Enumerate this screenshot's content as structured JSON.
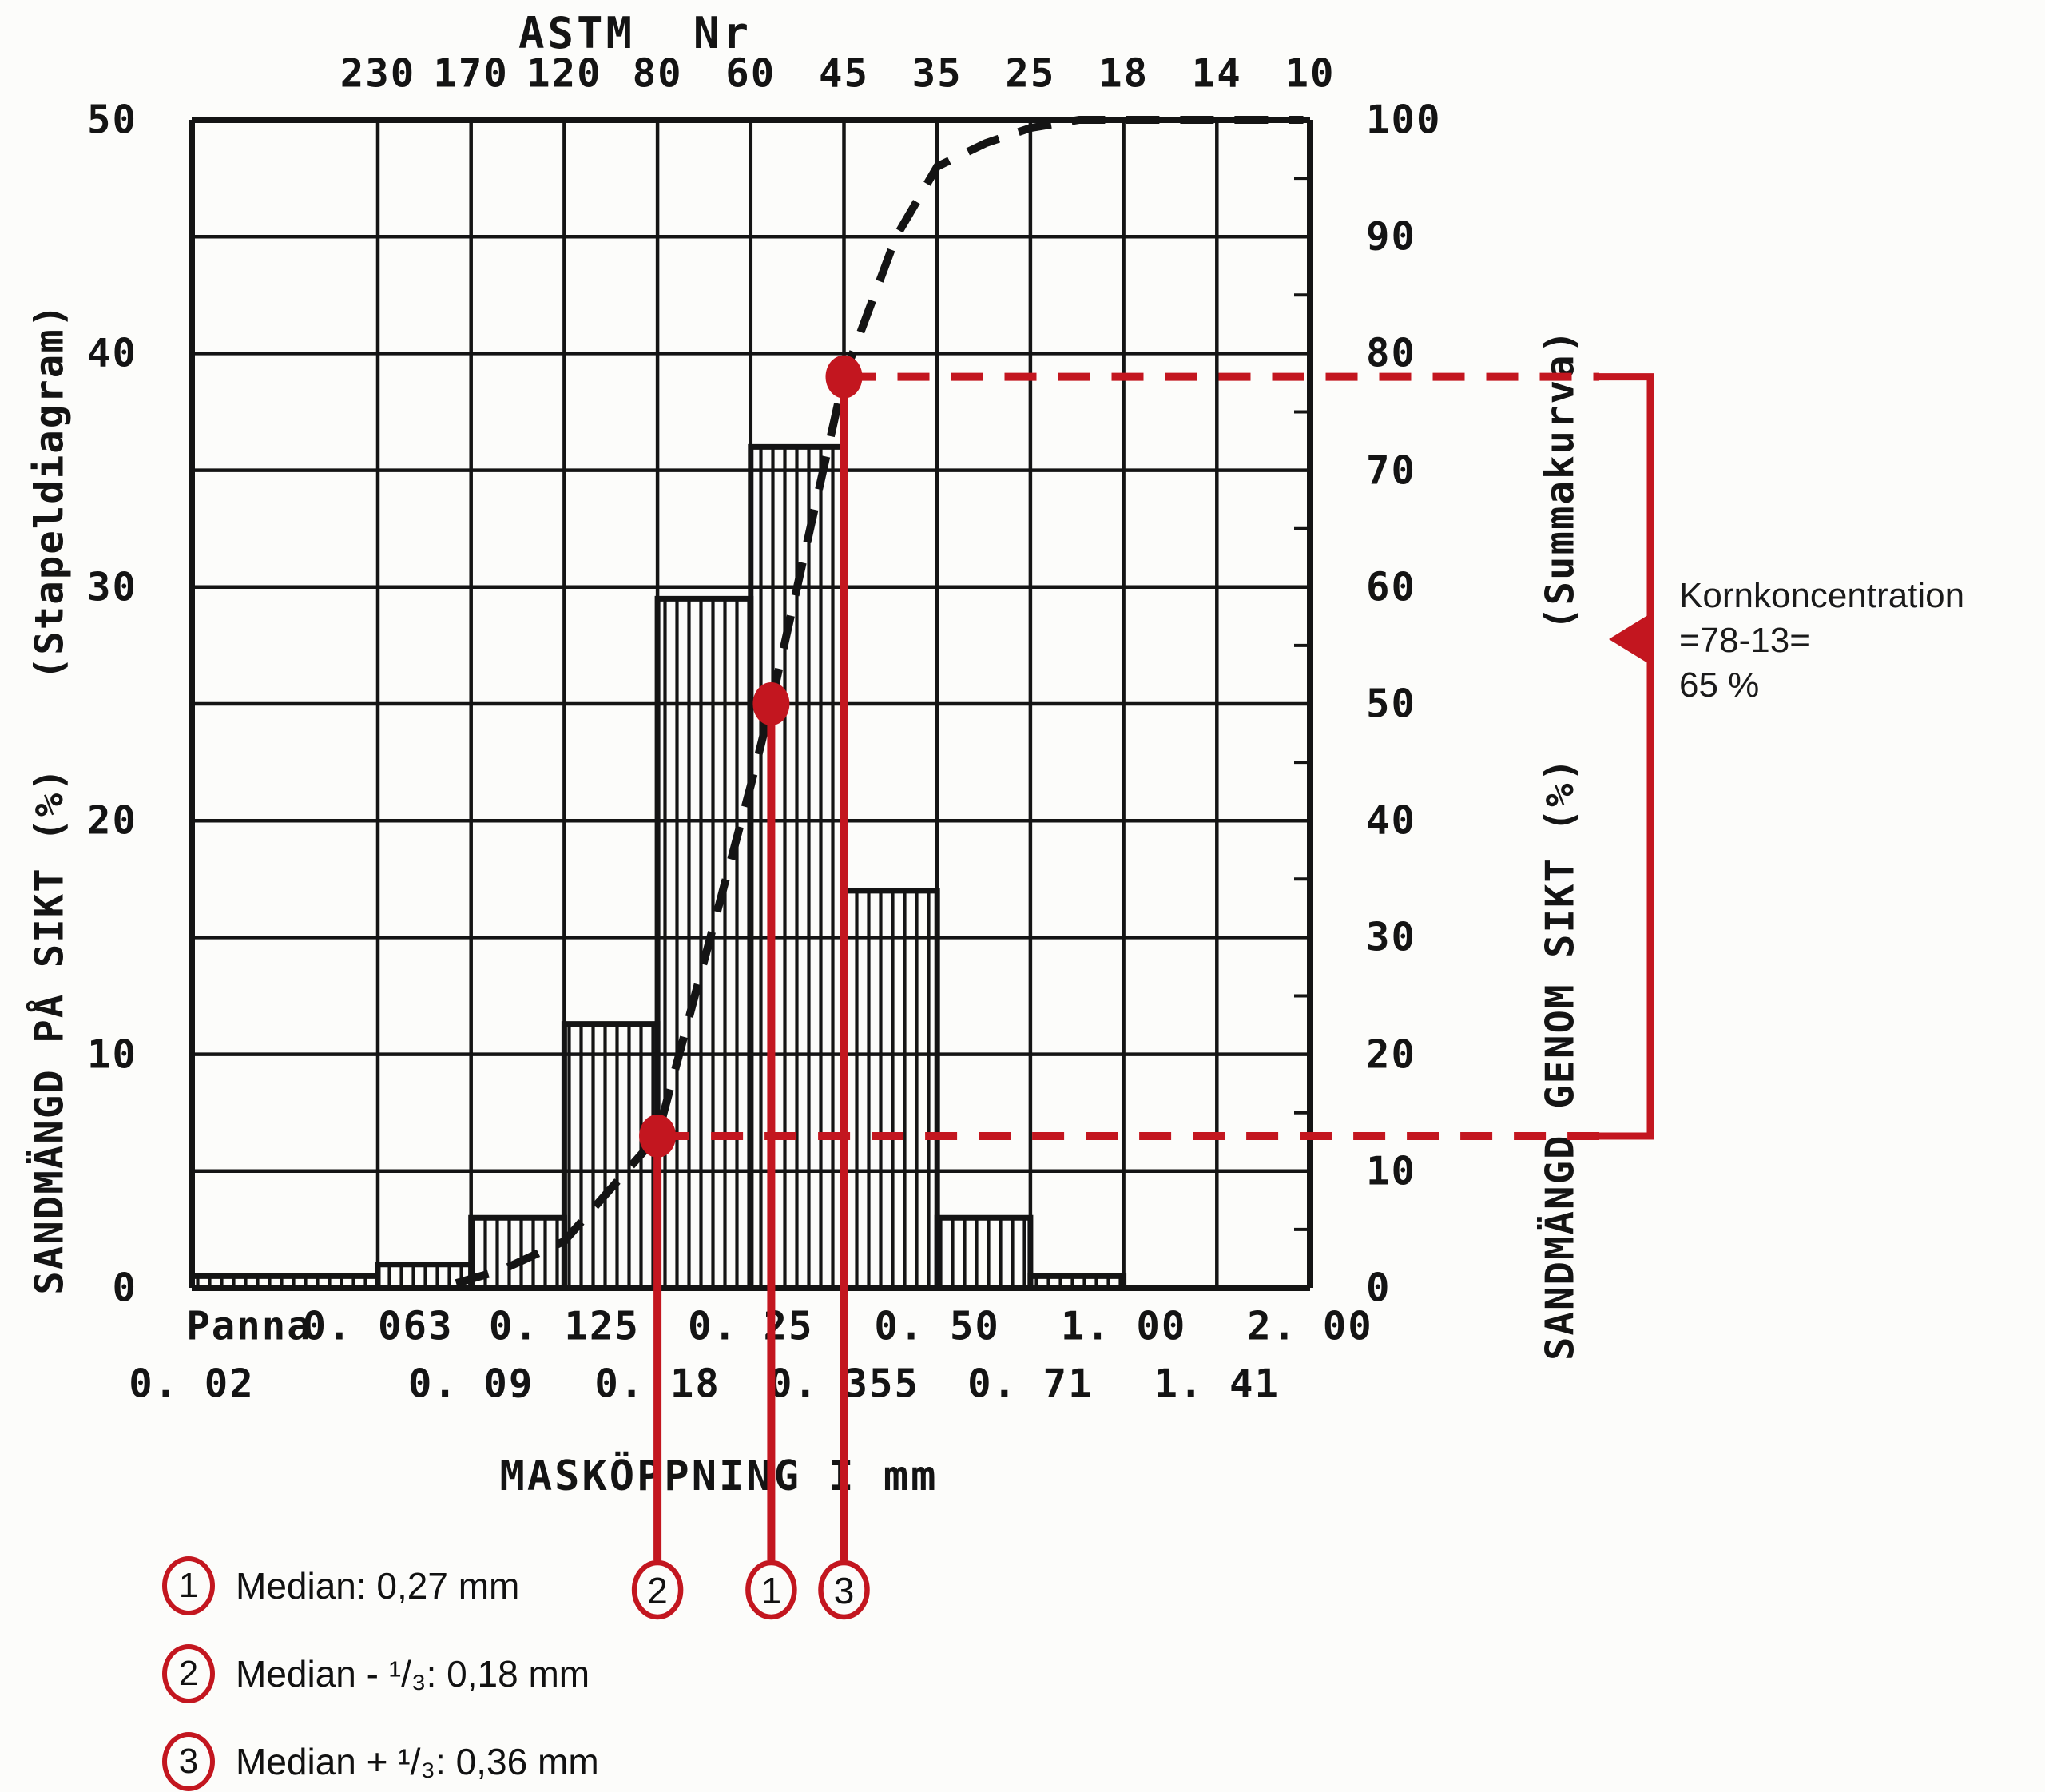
{
  "colors": {
    "ink": "#141414",
    "red": "#c3161f",
    "paper": "#fcfcfa"
  },
  "chart_data": {
    "type": "bar",
    "title": "ASTM  Nr",
    "xlabel": "MASKÖPPNING I mm",
    "x_scale": "log",
    "sieves_mm": [
      0.063,
      0.09,
      0.125,
      0.18,
      0.25,
      0.355,
      0.5,
      0.71,
      1.0,
      1.41,
      2.0
    ],
    "astm_numbers": [
      "230",
      "170",
      "120",
      "80",
      "60",
      "45",
      "35",
      "25",
      "18",
      "14",
      "10"
    ],
    "x_labels_row1": [
      {
        "label": "Panna",
        "at": "pan"
      },
      {
        "label": "0. 063",
        "at": 0.063
      },
      {
        "label": "0. 125",
        "at": 0.125
      },
      {
        "label": "0. 25",
        "at": 0.25
      },
      {
        "label": "0. 50",
        "at": 0.5
      },
      {
        "label": "1. 00",
        "at": 1.0
      },
      {
        "label": "2. 00",
        "at": 2.0
      }
    ],
    "x_labels_row2": [
      {
        "label": "0. 02",
        "at": "left"
      },
      {
        "label": "0. 09",
        "at": 0.09
      },
      {
        "label": "0. 18",
        "at": 0.18
      },
      {
        "label": "0. 355",
        "at": 0.355
      },
      {
        "label": "0. 71",
        "at": 0.71
      },
      {
        "label": "1. 41",
        "at": 1.41
      }
    ],
    "left_axis": {
      "title": "SANDMÄNGD PÅ SIKT (%)",
      "subtitle": "(Stapeldiagram)",
      "ticks": [
        0,
        10,
        20,
        30,
        40,
        50
      ],
      "max": 50,
      "grid_step": 5
    },
    "right_axis": {
      "title": "SANDMÄNGD GENOM SIKT (%)",
      "subtitle": "(Summakurva)",
      "ticks": [
        0,
        10,
        20,
        30,
        40,
        50,
        60,
        70,
        80,
        90,
        100
      ],
      "max": 100
    },
    "bars_pct_on_sieve": [
      {
        "from": "pan",
        "to": 0.063,
        "value": 0.5
      },
      {
        "from": 0.063,
        "to": 0.09,
        "value": 1
      },
      {
        "from": 0.09,
        "to": 0.125,
        "value": 3
      },
      {
        "from": 0.125,
        "to": 0.18,
        "value": 11.3
      },
      {
        "from": 0.18,
        "to": 0.25,
        "value": 29.5
      },
      {
        "from": 0.25,
        "to": 0.355,
        "value": 36
      },
      {
        "from": 0.355,
        "to": 0.5,
        "value": 17
      },
      {
        "from": 0.5,
        "to": 0.71,
        "value": 3
      },
      {
        "from": 0.71,
        "to": 1.0,
        "value": 0.5
      },
      {
        "from": 1.0,
        "to": 1.41,
        "value": 0
      },
      {
        "from": 1.41,
        "to": 2.0,
        "value": 0
      }
    ],
    "cumulative_curve": {
      "x_mm": [
        0.085,
        0.1,
        0.125,
        0.18,
        0.25,
        0.27,
        0.355,
        0.43,
        0.5,
        0.6,
        0.71,
        0.85,
        1.0,
        1.95
      ],
      "y_pct": [
        0.4,
        1.5,
        4,
        13,
        43,
        50,
        78,
        90,
        96,
        98,
        99.3,
        100,
        100,
        100
      ]
    },
    "markers": [
      {
        "id": "2",
        "mm": 0.18,
        "pct": 13,
        "dash_to_right": true
      },
      {
        "id": "1",
        "mm": 0.27,
        "pct": 50,
        "dash_to_right": false
      },
      {
        "id": "3",
        "mm": 0.355,
        "pct": 78,
        "dash_to_right": true
      }
    ]
  },
  "annotation": {
    "line1": "Kornkoncentration",
    "line2": "=78-13=",
    "line3": "65 %"
  },
  "legend": [
    {
      "id": "1",
      "text": "Median: 0,27 mm"
    },
    {
      "id": "2",
      "text": "Median - ¹/₃: 0,18 mm"
    },
    {
      "id": "3",
      "text": "Median + ¹/₃: 0,36 mm"
    }
  ]
}
